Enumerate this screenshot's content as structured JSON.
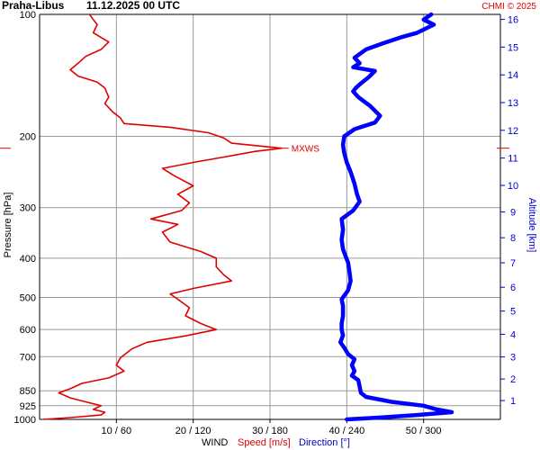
{
  "header": {
    "station": "Praha-Libus",
    "datetime": "11.12.2025 00 UTC",
    "copyright": "CHMI © 2025"
  },
  "chart_data": {
    "type": "line",
    "title": "",
    "y_axis_left": {
      "label": "Pressure [hPa]",
      "scale": "log",
      "ticks": [
        100,
        200,
        300,
        400,
        500,
        600,
        700,
        850,
        925,
        1000
      ],
      "range": [
        100,
        1000
      ]
    },
    "y_axis_right": {
      "label": "Altitude [km]",
      "ticks": [
        1,
        2,
        3,
        4,
        5,
        6,
        7,
        8,
        9,
        10,
        11,
        12,
        13,
        14,
        15,
        16
      ]
    },
    "x_axis": {
      "label_prefix": "WIND",
      "label_speed": "Speed [m/s]",
      "label_direction": "Direction [°]",
      "tick_labels": [
        "10 / 60",
        "20 / 120",
        "30 / 180",
        "40 / 240",
        "50 / 300"
      ],
      "speed_ticks": [
        10,
        20,
        30,
        40,
        50
      ],
      "direction_ticks": [
        60,
        120,
        180,
        240,
        300
      ],
      "speed_range": [
        0,
        60
      ],
      "direction_range": [
        0,
        360
      ]
    },
    "annotation": {
      "text": "MXWS",
      "pressure": 214,
      "speed": 31.5
    },
    "series": [
      {
        "name": "Speed [m/s]",
        "color": "#e00000",
        "axis": "speed",
        "points": [
          [
            1000,
            0.5
          ],
          [
            990,
            4
          ],
          [
            975,
            8
          ],
          [
            960,
            8.5
          ],
          [
            945,
            7
          ],
          [
            925,
            8
          ],
          [
            905,
            6
          ],
          [
            885,
            4
          ],
          [
            860,
            2.5
          ],
          [
            840,
            4
          ],
          [
            815,
            5.5
          ],
          [
            790,
            9
          ],
          [
            760,
            11
          ],
          [
            735,
            10
          ],
          [
            705,
            10.5
          ],
          [
            670,
            12
          ],
          [
            645,
            14
          ],
          [
            622,
            19
          ],
          [
            600,
            23
          ],
          [
            580,
            21
          ],
          [
            555,
            19
          ],
          [
            530,
            19.5
          ],
          [
            505,
            18
          ],
          [
            490,
            17
          ],
          [
            475,
            20
          ],
          [
            455,
            25
          ],
          [
            440,
            24
          ],
          [
            420,
            23
          ],
          [
            400,
            23
          ],
          [
            385,
            21
          ],
          [
            365,
            17
          ],
          [
            345,
            16
          ],
          [
            330,
            18
          ],
          [
            320,
            14.5
          ],
          [
            305,
            18.5
          ],
          [
            292,
            19.5
          ],
          [
            278,
            18
          ],
          [
            265,
            20
          ],
          [
            250,
            17.5
          ],
          [
            240,
            16
          ],
          [
            232,
            20
          ],
          [
            225,
            24
          ],
          [
            218,
            28
          ],
          [
            214,
            31.5
          ],
          [
            208,
            25
          ],
          [
            202,
            24
          ],
          [
            196,
            22
          ],
          [
            190,
            17
          ],
          [
            186,
            11
          ],
          [
            180,
            10.5
          ],
          [
            174,
            9.5
          ],
          [
            166,
            8.5
          ],
          [
            160,
            9
          ],
          [
            152,
            8.5
          ],
          [
            147,
            7.5
          ],
          [
            142,
            5
          ],
          [
            137,
            4
          ],
          [
            132,
            5
          ],
          [
            127,
            6
          ],
          [
            122,
            8
          ],
          [
            117,
            9
          ],
          [
            111,
            7
          ],
          [
            106,
            7.5
          ],
          [
            103,
            7
          ],
          [
            100,
            6.5
          ]
        ]
      },
      {
        "name": "Direction [°]",
        "color": "#0000ff",
        "axis": "direction",
        "points": [
          [
            1000,
            240
          ],
          [
            990,
            265
          ],
          [
            975,
            295
          ],
          [
            960,
            322
          ],
          [
            945,
            310
          ],
          [
            925,
            300
          ],
          [
            905,
            275
          ],
          [
            880,
            255
          ],
          [
            860,
            251
          ],
          [
            830,
            250
          ],
          [
            800,
            249
          ],
          [
            780,
            244
          ],
          [
            760,
            246
          ],
          [
            735,
            244
          ],
          [
            710,
            246
          ],
          [
            690,
            241
          ],
          [
            665,
            238
          ],
          [
            645,
            235
          ],
          [
            620,
            237
          ],
          [
            600,
            236
          ],
          [
            580,
            236
          ],
          [
            555,
            237
          ],
          [
            525,
            237
          ],
          [
            505,
            236
          ],
          [
            480,
            241
          ],
          [
            455,
            243
          ],
          [
            430,
            242
          ],
          [
            410,
            241
          ],
          [
            395,
            239
          ],
          [
            380,
            237
          ],
          [
            360,
            236
          ],
          [
            340,
            237
          ],
          [
            320,
            236
          ],
          [
            305,
            245
          ],
          [
            290,
            250
          ],
          [
            278,
            248
          ],
          [
            262,
            246
          ],
          [
            245,
            243
          ],
          [
            232,
            240
          ],
          [
            220,
            238
          ],
          [
            210,
            237
          ],
          [
            200,
            238
          ],
          [
            192,
            246
          ],
          [
            185,
            262
          ],
          [
            178,
            266
          ],
          [
            168,
            258
          ],
          [
            160,
            249
          ],
          [
            155,
            245
          ],
          [
            152,
            247
          ],
          [
            148,
            251
          ],
          [
            143,
            257
          ],
          [
            138,
            262
          ],
          [
            135,
            245
          ],
          [
            132,
            250
          ],
          [
            128,
            246
          ],
          [
            122,
            255
          ],
          [
            118,
            268
          ],
          [
            114,
            282
          ],
          [
            111,
            295
          ],
          [
            106,
            308
          ],
          [
            103,
            300
          ],
          [
            100,
            306
          ]
        ]
      }
    ],
    "grid": true
  }
}
